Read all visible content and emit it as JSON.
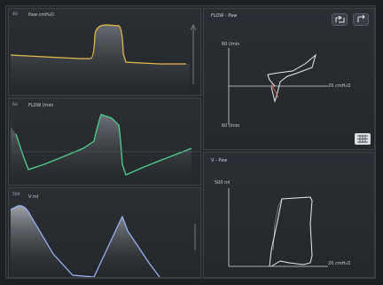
{
  "waveforms": {
    "pressure": {
      "label": "Paw cmH₂O",
      "scale": "40",
      "color": "#e6b84a"
    },
    "flow": {
      "label": "FLOW l/min",
      "scale": "60",
      "color": "#4fcf8c"
    },
    "volume": {
      "label": "V ml",
      "scale": "500",
      "color": "#9fb7ff"
    }
  },
  "loops": {
    "flow_pressure": {
      "title": "FLOW - Paw",
      "y_top": "60 l/min",
      "y_bottom": "60 l/min",
      "x_label": "20 cmH₂O"
    },
    "volume_pressure": {
      "title": "V - Paw",
      "y_top": "500 ml",
      "x_label": "20 cmH₂O"
    }
  },
  "toolbar": {
    "freeze_icon": "freeze-icon",
    "close_icon": "close-icon",
    "grid_icon": "grid-icon"
  },
  "colors": {
    "pressure": "#e6b84a",
    "flow": "#4fcf8c",
    "volume": "#9fb7ff",
    "loop": "#e8eaee"
  }
}
